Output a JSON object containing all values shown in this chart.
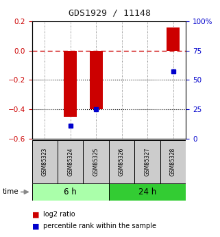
{
  "title": "GDS1929 / 11148",
  "samples": [
    "GSM85323",
    "GSM85324",
    "GSM85325",
    "GSM85326",
    "GSM85327",
    "GSM85328"
  ],
  "log2_ratio": [
    0.0,
    -0.45,
    -0.4,
    0.0,
    0.0,
    0.16
  ],
  "percentile_rank": [
    null,
    11,
    25,
    null,
    null,
    57
  ],
  "ylim_left": [
    -0.6,
    0.2
  ],
  "ylim_right": [
    0,
    100
  ],
  "groups": [
    {
      "label": "6 h",
      "indices": [
        0,
        1,
        2
      ],
      "color": "#aaffaa"
    },
    {
      "label": "24 h",
      "indices": [
        3,
        4,
        5
      ],
      "color": "#33cc33"
    }
  ],
  "bar_color": "#cc0000",
  "dot_color": "#0000cc",
  "dashed_line_color": "#cc0000",
  "dotted_line_color": "#000000",
  "sample_box_color": "#cccccc",
  "background_color": "#ffffff",
  "title_color": "#222222",
  "left_axis_color": "#cc0000",
  "right_axis_color": "#0000cc",
  "bar_width": 0.5
}
